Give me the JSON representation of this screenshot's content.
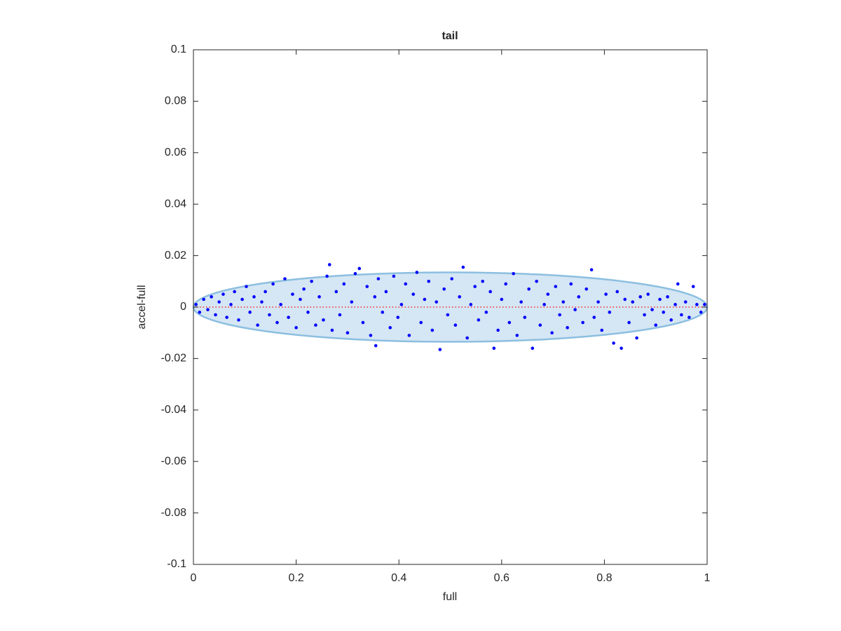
{
  "chart_data": {
    "type": "scatter",
    "title": "tail",
    "xlabel": "full",
    "ylabel": "accel-full",
    "xlim": [
      0,
      1
    ],
    "xticks": [
      0,
      0.2,
      0.4,
      0.6,
      0.8,
      1
    ],
    "ylim": [
      -0.1,
      0.1
    ],
    "yticks": [
      -0.1,
      -0.08,
      -0.06,
      -0.04,
      -0.02,
      0,
      0.02,
      0.04,
      0.06,
      0.08,
      0.1
    ],
    "grid": false,
    "ellipse": {
      "center": [
        0.5,
        0
      ],
      "rx": 0.5,
      "ry": 0.0135,
      "fill": "#d5e6f4",
      "stroke": "#8cbfe0"
    },
    "reference_line": {
      "x": [
        0,
        1
      ],
      "values": [
        0,
        0
      ],
      "color": "#ff0000"
    },
    "series": [
      {
        "color": "#0000ff",
        "x": [
          0.005,
          0.012,
          0.02,
          0.028,
          0.035,
          0.043,
          0.05,
          0.058,
          0.065,
          0.073,
          0.08,
          0.088,
          0.095,
          0.103,
          0.11,
          0.118,
          0.125,
          0.133,
          0.14,
          0.148,
          0.155,
          0.163,
          0.17,
          0.178,
          0.185,
          0.193,
          0.2,
          0.208,
          0.215,
          0.223,
          0.23,
          0.238,
          0.245,
          0.253,
          0.26,
          0.265,
          0.27,
          0.278,
          0.285,
          0.293,
          0.3,
          0.308,
          0.315,
          0.323,
          0.33,
          0.338,
          0.345,
          0.353,
          0.355,
          0.36,
          0.368,
          0.375,
          0.383,
          0.39,
          0.398,
          0.405,
          0.413,
          0.42,
          0.428,
          0.435,
          0.443,
          0.45,
          0.458,
          0.465,
          0.473,
          0.48,
          0.488,
          0.495,
          0.503,
          0.51,
          0.518,
          0.525,
          0.533,
          0.54,
          0.548,
          0.555,
          0.563,
          0.57,
          0.578,
          0.585,
          0.593,
          0.6,
          0.608,
          0.615,
          0.623,
          0.63,
          0.638,
          0.645,
          0.653,
          0.66,
          0.668,
          0.675,
          0.683,
          0.69,
          0.698,
          0.705,
          0.713,
          0.72,
          0.728,
          0.735,
          0.743,
          0.75,
          0.758,
          0.765,
          0.775,
          0.78,
          0.788,
          0.795,
          0.803,
          0.81,
          0.818,
          0.825,
          0.833,
          0.84,
          0.848,
          0.855,
          0.863,
          0.87,
          0.878,
          0.885,
          0.893,
          0.9,
          0.908,
          0.915,
          0.923,
          0.93,
          0.938,
          0.943,
          0.95,
          0.958,
          0.965,
          0.973,
          0.98,
          0.988,
          0.995
        ],
        "values": [
          0.001,
          -0.002,
          0.003,
          -0.001,
          0.004,
          -0.003,
          0.002,
          0.005,
          -0.004,
          0.001,
          0.006,
          -0.005,
          0.003,
          0.008,
          -0.002,
          0.004,
          -0.007,
          0.002,
          0.006,
          -0.003,
          0.009,
          -0.006,
          0.001,
          0.011,
          -0.004,
          0.005,
          -0.008,
          0.003,
          0.007,
          -0.002,
          0.01,
          -0.007,
          0.004,
          -0.005,
          0.012,
          0.0165,
          -0.009,
          0.006,
          -0.003,
          0.009,
          -0.01,
          0.002,
          0.013,
          0.015,
          -0.006,
          0.008,
          -0.011,
          0.004,
          -0.015,
          0.011,
          -0.002,
          0.006,
          -0.008,
          0.012,
          -0.004,
          0.001,
          0.009,
          -0.011,
          0.005,
          0.0135,
          -0.006,
          0.003,
          0.01,
          -0.009,
          0.002,
          -0.0165,
          0.007,
          -0.003,
          0.011,
          -0.007,
          0.004,
          0.0155,
          -0.012,
          0.001,
          0.008,
          -0.005,
          0.01,
          -0.002,
          0.006,
          -0.016,
          -0.009,
          0.003,
          0.009,
          -0.006,
          0.013,
          -0.011,
          0.002,
          -0.004,
          0.007,
          -0.016,
          0.01,
          -0.007,
          0.001,
          0.005,
          -0.01,
          0.008,
          -0.003,
          0.002,
          -0.008,
          0.009,
          -0.001,
          0.004,
          -0.006,
          0.007,
          0.0145,
          -0.004,
          0.002,
          -0.009,
          0.005,
          -0.002,
          -0.014,
          0.006,
          -0.016,
          0.003,
          -0.006,
          0.002,
          -0.012,
          0.004,
          -0.003,
          0.005,
          -0.001,
          -0.007,
          0.003,
          -0.002,
          0.004,
          -0.005,
          0.001,
          0.009,
          -0.003,
          0.002,
          -0.004,
          0.008,
          0.001,
          -0.002,
          0.001
        ]
      }
    ]
  }
}
